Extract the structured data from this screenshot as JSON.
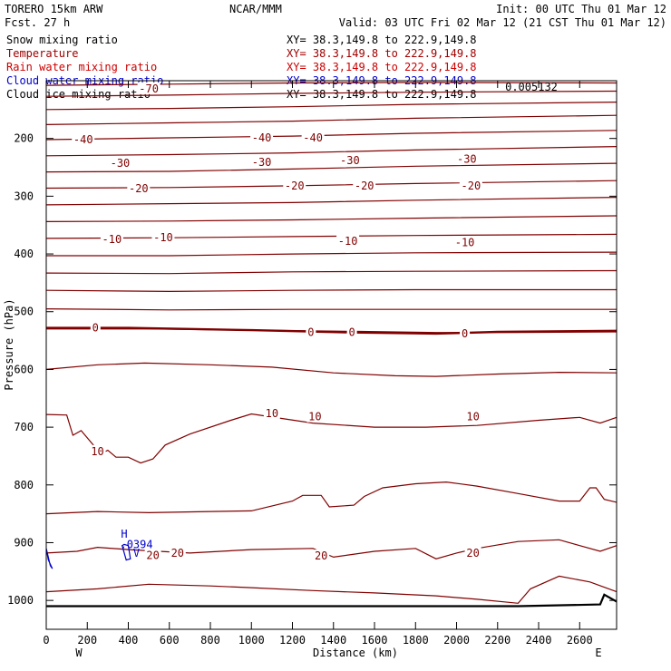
{
  "header": {
    "model": "TORERO  15km ARW",
    "fcst": "Fcst.    27 h",
    "center": "NCAR/MMM",
    "init": "Init: 00 UTC Thu 01 Mar 12",
    "valid": "Valid: 03 UTC Fri 02 Mar 12 (21 CST Thu 01 Mar 12)"
  },
  "legend": [
    {
      "label": "Snow mixing ratio",
      "xy": "XY=  38.3,149.8 to 222.9,149.8",
      "color": "#000000"
    },
    {
      "label": "Temperature",
      "xy": "XY=  38.3,149.8 to 222.9,149.8",
      "color": "#a00000"
    },
    {
      "label": "Rain water mixing ratio",
      "xy": "XY=  38.3,149.8 to 222.9,149.8",
      "color": "#cc0000"
    },
    {
      "label": "Cloud water mixing ratio",
      "xy": "XY=  38.3,149.8 to 222.9,149.8",
      "color": "#0000cc"
    },
    {
      "label": "Cloud ice mixing ratio",
      "xy": "XY=  38.3,149.8 to 222.9,149.8",
      "color": "#000000"
    }
  ],
  "chart_data": {
    "type": "line",
    "ylabel": "Pressure (hPa)",
    "xlabel": "Distance (km)",
    "xlim": [
      0,
      2780
    ],
    "ylim": [
      100,
      1050
    ],
    "x_ticks": [
      0,
      200,
      400,
      600,
      800,
      1000,
      1200,
      1400,
      1600,
      1800,
      2000,
      2200,
      2400,
      2600
    ],
    "y_ticks": [
      200,
      300,
      400,
      500,
      600,
      700,
      800,
      900,
      1000
    ],
    "west_label": "W",
    "east_label": "E",
    "top_label": "0.005132",
    "colors": {
      "isotherm": "#800000",
      "freezing": "#800000",
      "cloud": "#0000cc",
      "ground": "#000000"
    },
    "isotherms": [
      {
        "points": [
          [
            0,
            108
          ],
          [
            600,
            106
          ],
          [
            1200,
            104
          ],
          [
            1800,
            103
          ],
          [
            2780,
            104
          ]
        ]
      },
      {
        "points": [
          [
            0,
            127
          ],
          [
            600,
            125
          ],
          [
            1200,
            122
          ],
          [
            1800,
            120
          ],
          [
            2780,
            118
          ]
        ]
      },
      {
        "points": [
          [
            0,
            150
          ],
          [
            600,
            148
          ],
          [
            1200,
            145
          ],
          [
            1800,
            141
          ],
          [
            2780,
            137
          ]
        ]
      },
      {
        "points": [
          [
            0,
            176
          ],
          [
            600,
            173
          ],
          [
            1200,
            170
          ],
          [
            1800,
            165
          ],
          [
            2780,
            160
          ]
        ]
      },
      {
        "points": [
          [
            0,
            202
          ],
          [
            600,
            199
          ],
          [
            1200,
            196
          ],
          [
            1800,
            191
          ],
          [
            2780,
            186
          ]
        ]
      },
      {
        "points": [
          [
            0,
            230
          ],
          [
            600,
            228
          ],
          [
            1200,
            225
          ],
          [
            1800,
            220
          ],
          [
            2780,
            214
          ]
        ]
      },
      {
        "points": [
          [
            0,
            258
          ],
          [
            600,
            257
          ],
          [
            1200,
            253
          ],
          [
            1800,
            248
          ],
          [
            2780,
            243
          ]
        ]
      },
      {
        "points": [
          [
            0,
            286
          ],
          [
            600,
            285
          ],
          [
            1200,
            282
          ],
          [
            1800,
            278
          ],
          [
            2780,
            273
          ]
        ]
      },
      {
        "points": [
          [
            0,
            315
          ],
          [
            600,
            313
          ],
          [
            1200,
            311
          ],
          [
            1800,
            307
          ],
          [
            2780,
            302
          ]
        ]
      },
      {
        "points": [
          [
            0,
            344
          ],
          [
            600,
            343
          ],
          [
            1200,
            341
          ],
          [
            1800,
            338
          ],
          [
            2780,
            334
          ]
        ]
      },
      {
        "points": [
          [
            0,
            373
          ],
          [
            600,
            372
          ],
          [
            1200,
            370
          ],
          [
            1800,
            368
          ],
          [
            2780,
            366
          ]
        ]
      },
      {
        "points": [
          [
            0,
            403
          ],
          [
            600,
            403
          ],
          [
            1200,
            400
          ],
          [
            1800,
            398
          ],
          [
            2780,
            397
          ]
        ]
      },
      {
        "points": [
          [
            0,
            433
          ],
          [
            600,
            434
          ],
          [
            1200,
            431
          ],
          [
            1800,
            430
          ],
          [
            2780,
            429
          ]
        ]
      },
      {
        "points": [
          [
            0,
            463
          ],
          [
            600,
            465
          ],
          [
            1200,
            463
          ],
          [
            1800,
            462
          ],
          [
            2780,
            462
          ]
        ]
      },
      {
        "points": [
          [
            0,
            495
          ],
          [
            600,
            497
          ],
          [
            1200,
            496
          ],
          [
            1800,
            496
          ],
          [
            2780,
            496
          ]
        ]
      },
      {
        "points": [
          [
            0,
            530
          ],
          [
            500,
            530
          ],
          [
            1000,
            532
          ],
          [
            1500,
            534
          ],
          [
            1900,
            536
          ],
          [
            2300,
            536
          ],
          [
            2780,
            535
          ]
        ]
      },
      {
        "points": [
          [
            0,
            600
          ],
          [
            250,
            592
          ],
          [
            480,
            589
          ],
          [
            800,
            592
          ],
          [
            1100,
            596
          ],
          [
            1400,
            606
          ],
          [
            1700,
            611
          ],
          [
            1900,
            612
          ],
          [
            2200,
            608
          ],
          [
            2500,
            605
          ],
          [
            2780,
            606
          ]
        ]
      },
      {
        "points": [
          [
            0,
            678
          ],
          [
            100,
            679
          ],
          [
            130,
            714
          ],
          [
            170,
            706
          ],
          [
            230,
            731
          ],
          [
            260,
            747
          ],
          [
            300,
            740
          ],
          [
            340,
            752
          ],
          [
            400,
            752
          ],
          [
            460,
            762
          ],
          [
            520,
            755
          ],
          [
            580,
            731
          ],
          [
            700,
            712
          ],
          [
            900,
            688
          ],
          [
            1000,
            677
          ],
          [
            1300,
            693
          ],
          [
            1600,
            700
          ],
          [
            1850,
            700
          ],
          [
            2100,
            697
          ],
          [
            2400,
            688
          ],
          [
            2600,
            683
          ],
          [
            2700,
            693
          ],
          [
            2780,
            683
          ]
        ]
      },
      {
        "points": [
          [
            0,
            850
          ],
          [
            250,
            846
          ],
          [
            500,
            848
          ],
          [
            800,
            846
          ],
          [
            1000,
            845
          ],
          [
            1200,
            828
          ],
          [
            1250,
            818
          ],
          [
            1340,
            818
          ],
          [
            1380,
            838
          ],
          [
            1500,
            835
          ],
          [
            1550,
            820
          ],
          [
            1640,
            805
          ],
          [
            1800,
            798
          ],
          [
            1950,
            795
          ],
          [
            2100,
            802
          ],
          [
            2300,
            815
          ],
          [
            2500,
            828
          ],
          [
            2600,
            828
          ],
          [
            2650,
            805
          ],
          [
            2680,
            805
          ],
          [
            2720,
            825
          ],
          [
            2780,
            830
          ]
        ]
      },
      {
        "points": [
          [
            0,
            918
          ],
          [
            150,
            915
          ],
          [
            250,
            908
          ],
          [
            400,
            912
          ],
          [
            700,
            918
          ],
          [
            1000,
            912
          ],
          [
            1300,
            910
          ],
          [
            1400,
            925
          ],
          [
            1600,
            915
          ],
          [
            1800,
            910
          ],
          [
            1900,
            928
          ],
          [
            2000,
            918
          ],
          [
            2100,
            910
          ],
          [
            2300,
            898
          ],
          [
            2500,
            895
          ],
          [
            2600,
            905
          ],
          [
            2700,
            915
          ],
          [
            2780,
            905
          ]
        ]
      },
      {
        "points": [
          [
            0,
            985
          ],
          [
            250,
            980
          ],
          [
            500,
            972
          ],
          [
            800,
            975
          ],
          [
            1000,
            978
          ],
          [
            1300,
            983
          ],
          [
            1600,
            987
          ],
          [
            1900,
            992
          ],
          [
            2100,
            998
          ],
          [
            2300,
            1005
          ],
          [
            2360,
            980
          ],
          [
            2500,
            958
          ],
          [
            2650,
            968
          ],
          [
            2780,
            985
          ]
        ]
      }
    ],
    "freezing_line": {
      "label": "0",
      "points": [
        [
          0,
          528
        ],
        [
          400,
          528
        ],
        [
          700,
          530
        ],
        [
          1000,
          532
        ],
        [
          1500,
          536
        ],
        [
          1900,
          538
        ],
        [
          2200,
          535
        ],
        [
          2780,
          533
        ]
      ]
    },
    "ground": {
      "points": [
        [
          0,
          1010
        ],
        [
          1000,
          1010
        ],
        [
          2000,
          1010
        ],
        [
          2300,
          1010
        ],
        [
          2700,
          1007
        ],
        [
          2720,
          990
        ],
        [
          2780,
          1002
        ]
      ]
    },
    "cloud_water": [
      {
        "points": [
          [
            0,
            910
          ],
          [
            20,
            940
          ],
          [
            30,
            945
          ],
          [
            10,
            930
          ],
          [
            0,
            910
          ]
        ]
      },
      {
        "points": [
          [
            370,
            905
          ],
          [
            390,
            930
          ],
          [
            410,
            928
          ],
          [
            400,
            905
          ],
          [
            380,
            903
          ]
        ]
      }
    ],
    "temp_labels": [
      {
        "text": "-70",
        "x": 500,
        "y": 114
      },
      {
        "text": "-40",
        "x": 180,
        "y": 202
      },
      {
        "text": "-40",
        "x": 1050,
        "y": 199
      },
      {
        "text": "-40",
        "x": 1300,
        "y": 199
      },
      {
        "text": "-30",
        "x": 360,
        "y": 243
      },
      {
        "text": "-30",
        "x": 1050,
        "y": 241
      },
      {
        "text": "-30",
        "x": 1480,
        "y": 238
      },
      {
        "text": "-30",
        "x": 2050,
        "y": 236
      },
      {
        "text": "-20",
        "x": 450,
        "y": 287
      },
      {
        "text": "-20",
        "x": 1210,
        "y": 282
      },
      {
        "text": "-20",
        "x": 1550,
        "y": 282
      },
      {
        "text": "-20",
        "x": 2070,
        "y": 282
      },
      {
        "text": "-10",
        "x": 320,
        "y": 375
      },
      {
        "text": "-10",
        "x": 570,
        "y": 372
      },
      {
        "text": "-10",
        "x": 1470,
        "y": 378
      },
      {
        "text": "-10",
        "x": 2040,
        "y": 380
      },
      {
        "text": "10",
        "x": 1100,
        "y": 676
      },
      {
        "text": "10",
        "x": 1310,
        "y": 682
      },
      {
        "text": "10",
        "x": 2080,
        "y": 682
      },
      {
        "text": "10",
        "x": 250,
        "y": 742
      },
      {
        "text": "20",
        "x": 520,
        "y": 922
      },
      {
        "text": "20",
        "x": 640,
        "y": 918
      },
      {
        "text": "20",
        "x": 1340,
        "y": 923
      },
      {
        "text": "20",
        "x": 2080,
        "y": 918
      }
    ],
    "freeze_labels": [
      {
        "text": "0",
        "x": 240,
        "y": 528
      },
      {
        "text": "0",
        "x": 1290,
        "y": 536
      },
      {
        "text": "0",
        "x": 1490,
        "y": 536
      },
      {
        "text": "0",
        "x": 2040,
        "y": 538
      }
    ],
    "cloud_labels": [
      {
        "text": "H",
        "x": 380,
        "y": 885
      },
      {
        "text": ".0394",
        "x": 440,
        "y": 903
      },
      {
        "text": "V",
        "x": 440,
        "y": 918
      }
    ]
  }
}
